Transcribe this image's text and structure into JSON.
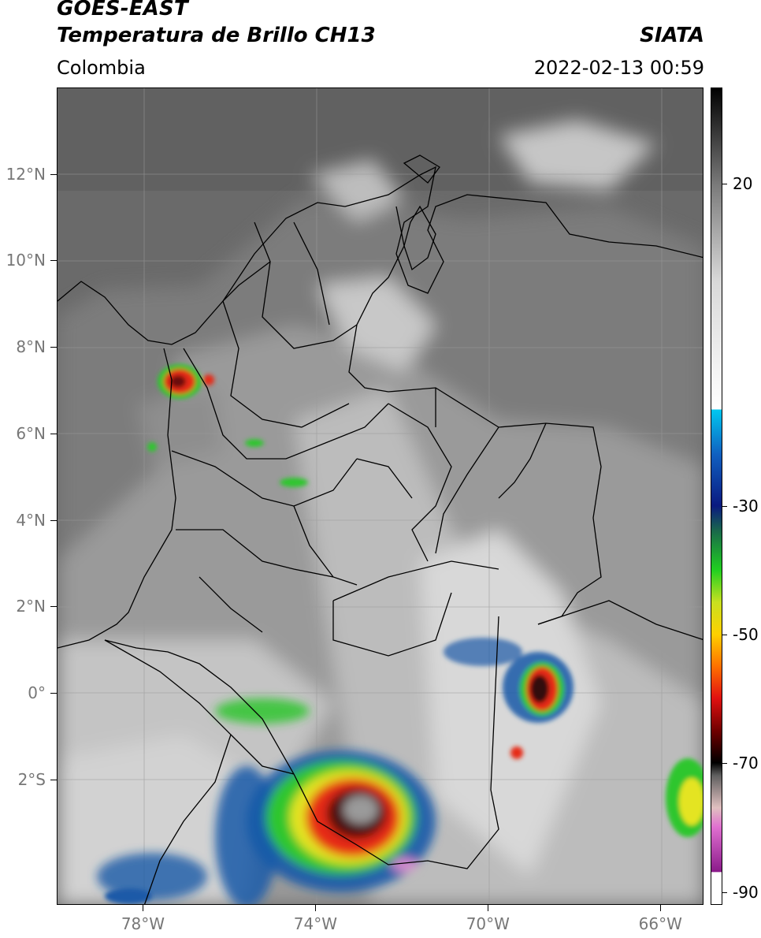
{
  "header": {
    "satellite": "GOES-EAST",
    "product": "Temperatura de Brillo CH13",
    "region": "Colombia",
    "agency": "SIATA",
    "datetime": "2022-02-13 00:59"
  },
  "map": {
    "lon_range": [
      -80,
      -65
    ],
    "lat_range": [
      -4.9,
      14
    ],
    "lat_labels": [
      {
        "lat": 12,
        "text": "12°N"
      },
      {
        "lat": 10,
        "text": "10°N"
      },
      {
        "lat": 8,
        "text": "8°N"
      },
      {
        "lat": 6,
        "text": "6°N"
      },
      {
        "lat": 4,
        "text": "4°N"
      },
      {
        "lat": 2,
        "text": "2°N"
      },
      {
        "lat": 0,
        "text": "0°"
      },
      {
        "lat": -2,
        "text": "2°S"
      }
    ],
    "lon_labels": [
      {
        "lon": -78,
        "text": "78°W"
      },
      {
        "lon": -74,
        "text": "74°W"
      },
      {
        "lon": -70,
        "text": "70°W"
      },
      {
        "lon": -66,
        "text": "66°W"
      }
    ],
    "grid": true,
    "colors": {
      "ocean": "#6a6a6a",
      "land_warm": "#b8b8b8",
      "cloud_bright": "#e6e6e6",
      "border": "#000000"
    }
  },
  "colorbar": {
    "range": [
      -92,
      35
    ],
    "ticks": [
      {
        "value": 20,
        "text": "20"
      },
      {
        "value": -30,
        "text": "-30"
      },
      {
        "value": -50,
        "text": "-50"
      },
      {
        "value": -70,
        "text": "-70"
      },
      {
        "value": -90,
        "text": "-90"
      }
    ]
  }
}
